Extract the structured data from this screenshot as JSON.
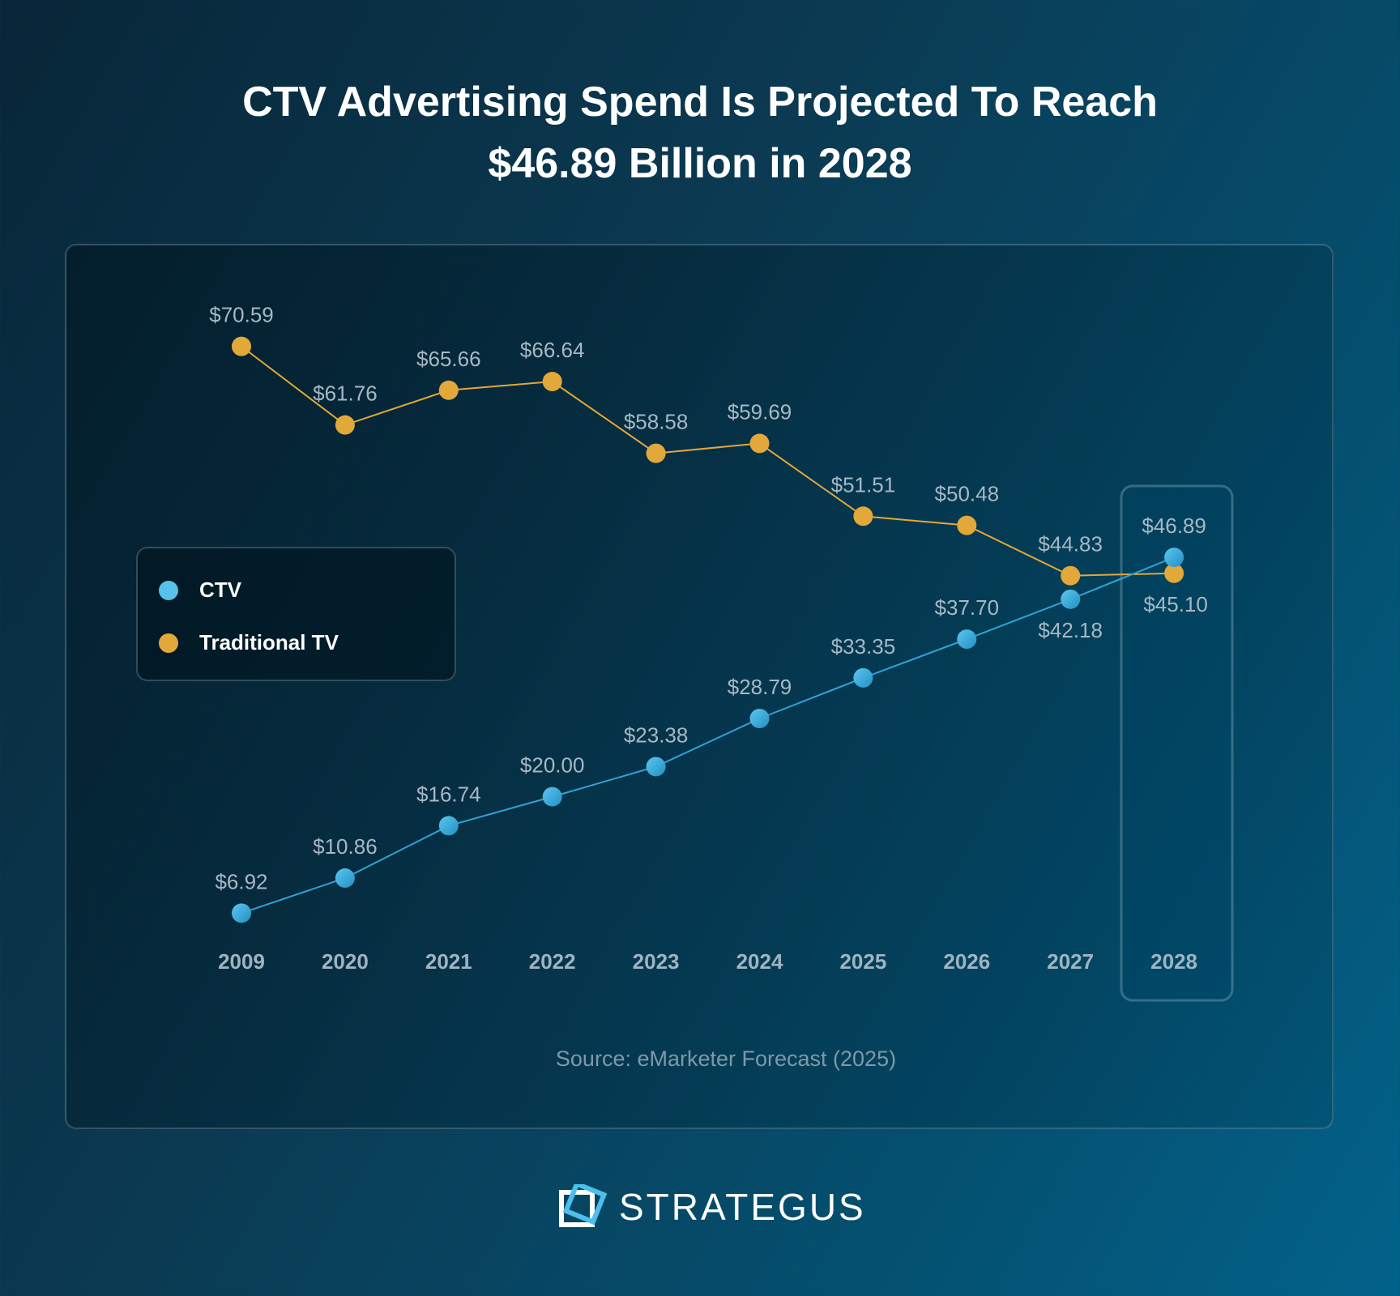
{
  "title_line1": "CTV Advertising Spend Is Projected To Reach",
  "title_line2": "$46.89 Billion in 2028",
  "source": "Source: eMarketer Forecast (2025)",
  "brand": "STRATEGUS",
  "colors": {
    "ctv": "#3bb0e0",
    "traditional_tv": "#e2a83a",
    "background": "#0b3a52"
  },
  "chart_data": {
    "type": "line",
    "categories": [
      "2009",
      "2020",
      "2021",
      "2022",
      "2023",
      "2024",
      "2025",
      "2026",
      "2027",
      "2028"
    ],
    "series": [
      {
        "name": "CTV",
        "values": [
          6.92,
          10.86,
          16.74,
          20.0,
          23.38,
          28.79,
          33.35,
          37.7,
          42.18,
          46.89
        ],
        "labels": [
          "$6.92",
          "$10.86",
          "$16.74",
          "$20.00",
          "$23.38",
          "$28.79",
          "$33.35",
          "$37.70",
          "$42.18",
          "$46.89"
        ]
      },
      {
        "name": "Traditional TV",
        "values": [
          70.59,
          61.76,
          65.66,
          66.64,
          58.58,
          59.69,
          51.51,
          50.48,
          44.83,
          45.1
        ],
        "labels": [
          "$70.59",
          "$61.76",
          "$65.66",
          "$66.64",
          "$58.58",
          "$59.69",
          "$51.51",
          "$50.48",
          "$44.83",
          "$45.10"
        ]
      }
    ],
    "highlighted_category": "2028",
    "legend_position": "left",
    "grid": false,
    "y_axis_visible": false
  }
}
